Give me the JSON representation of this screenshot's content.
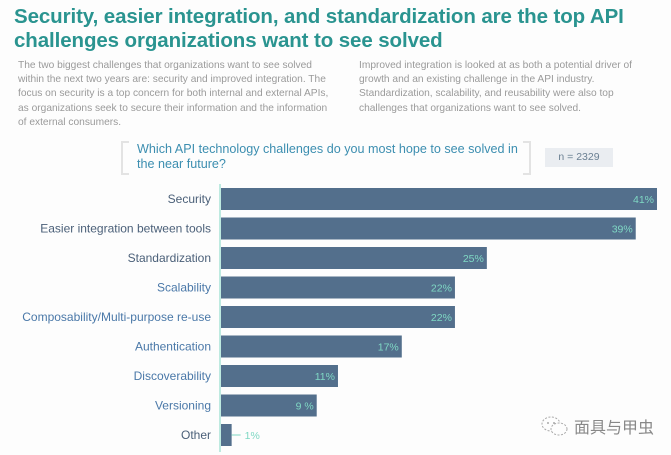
{
  "title": "Security, easier integration, and standardization are the top API challenges organizations want to see solved",
  "paragraphs": {
    "left": "The two biggest challenges that organizations want to see solved within the next two years are: security and improved integration. The focus on security is a top concern for both internal and external APIs, as organizations seek to secure their information and the information of external consumers.",
    "right": "Improved integration is looked at as both a potential driver of growth and an existing challenge in the API industry. Standardization, scalability, and reusability were also top challenges that organizations want to see solved."
  },
  "question": "Which API technology challenges do you most hope to see solved in the near future?",
  "sample_size": "n = 2329",
  "watermark": {
    "icon": "wechat-icon",
    "text": "面具与甲虫"
  },
  "colors": {
    "title": "#2a9490",
    "bar": "#536f8c",
    "value_label": "#7fd8c4",
    "axis": "#7fd8c4",
    "category_dark": "#4a5f78",
    "category_blue": "#4a78a8"
  },
  "chart_data": {
    "type": "bar",
    "orientation": "horizontal",
    "title": "Which API technology challenges do you most hope to see solved in the near future?",
    "xlabel": "",
    "ylabel": "",
    "xlim": [
      0,
      42
    ],
    "grid": false,
    "categories": [
      "Security",
      "Easier integration between tools",
      "Standardization",
      "Scalability",
      "Composability/Multi-purpose re-use",
      "Authentication",
      "Discoverability",
      "Versioning",
      "Other"
    ],
    "values": [
      41,
      39,
      25,
      22,
      22,
      17,
      11,
      9,
      1
    ],
    "value_labels": [
      "41%",
      "39%",
      "25%",
      "22%",
      "22%",
      "17%",
      "11%",
      "9 %",
      "1%"
    ],
    "unit": "%"
  }
}
